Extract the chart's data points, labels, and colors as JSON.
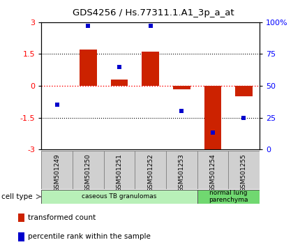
{
  "title": "GDS4256 / Hs.77311.1.A1_3p_a_at",
  "samples": [
    "GSM501249",
    "GSM501250",
    "GSM501251",
    "GSM501252",
    "GSM501253",
    "GSM501254",
    "GSM501255"
  ],
  "red_bars": [
    0.0,
    1.7,
    0.3,
    1.6,
    -0.15,
    -3.1,
    -0.5
  ],
  "blue_dots": [
    35,
    97,
    65,
    97,
    30,
    13,
    25
  ],
  "ylim_left": [
    -3,
    3
  ],
  "ylim_right": [
    0,
    100
  ],
  "yticks_left": [
    -3,
    -1.5,
    0,
    1.5,
    3
  ],
  "yticks_right": [
    0,
    25,
    50,
    75,
    100
  ],
  "right_tick_labels": [
    "0",
    "25",
    "50",
    "75",
    "100%"
  ],
  "cell_types": [
    {
      "label": "caseous TB granulomas",
      "samples": [
        0,
        1,
        2,
        3,
        4
      ],
      "color": "#b8f0b8"
    },
    {
      "label": "normal lung\nparenchyma",
      "samples": [
        5,
        6
      ],
      "color": "#70d870"
    }
  ],
  "legend_items": [
    {
      "label": "transformed count",
      "color": "#cc2200"
    },
    {
      "label": "percentile rank within the sample",
      "color": "#0000cc"
    }
  ],
  "bar_color": "#cc2200",
  "dot_color": "#0000cc",
  "background_color": "#ffffff",
  "cell_type_label": "cell type"
}
